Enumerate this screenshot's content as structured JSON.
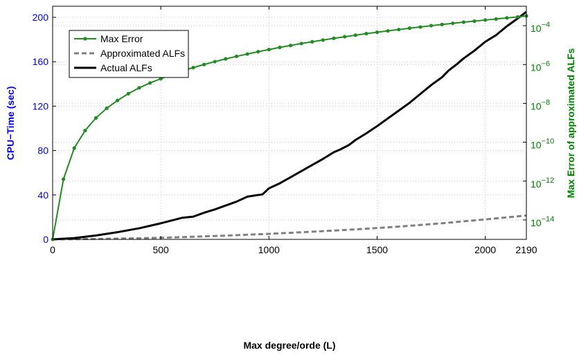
{
  "chart_data": {
    "type": "line",
    "title": "",
    "xlabel": "Max degree/orde (L)",
    "ylabel_left": "CPU−Time (sec)",
    "ylabel_right": "Max Error of approximated ALFs",
    "xlim": [
      0,
      2190
    ],
    "ylim_left": [
      0,
      210
    ],
    "ylim_right_log10": [
      -15,
      -3
    ],
    "right_axis_scale": "log",
    "x_ticks": [
      "0",
      "500",
      "1000",
      "1500",
      "2000",
      "2190"
    ],
    "x_tick_values": [
      0,
      500,
      1000,
      1500,
      2000,
      2190
    ],
    "y_left_ticks": [
      "0",
      "40",
      "80",
      "120",
      "160",
      "200"
    ],
    "y_left_tick_values": [
      0,
      40,
      80,
      120,
      160,
      200
    ],
    "y_right_tick_exponents": [
      "−14",
      "−12",
      "−10",
      "−8",
      "−6",
      "−4"
    ],
    "y_right_tick_values": [
      -14,
      -12,
      -10,
      -8,
      -6,
      -4
    ],
    "y_right_tick_base": "10",
    "grid": true,
    "legend_position": "top-left",
    "colors": {
      "left_axis": "#0000ff",
      "right_axis": "#008000",
      "max_error": "#228b22",
      "approximated": "#808080",
      "actual": "#000000"
    },
    "series": [
      {
        "name": "Max Error",
        "axis": "right",
        "style": "solid-marker",
        "x": [
          0,
          50,
          100,
          150,
          200,
          250,
          300,
          350,
          400,
          450,
          500,
          550,
          600,
          650,
          700,
          750,
          800,
          850,
          900,
          950,
          1000,
          1050,
          1100,
          1150,
          1200,
          1250,
          1300,
          1350,
          1400,
          1450,
          1500,
          1550,
          1600,
          1650,
          1700,
          1750,
          1800,
          1850,
          1900,
          1950,
          2000,
          2050,
          2100,
          2150,
          2190
        ],
        "y_log10": [
          -15.0,
          -11.9,
          -10.3,
          -9.4,
          -8.75,
          -8.25,
          -7.85,
          -7.5,
          -7.2,
          -6.95,
          -6.73,
          -6.52,
          -6.33,
          -6.16,
          -6.0,
          -5.85,
          -5.71,
          -5.58,
          -5.46,
          -5.34,
          -5.23,
          -5.12,
          -5.02,
          -4.92,
          -4.83,
          -4.74,
          -4.65,
          -4.57,
          -4.49,
          -4.41,
          -4.34,
          -4.27,
          -4.2,
          -4.13,
          -4.07,
          -4.0,
          -3.94,
          -3.88,
          -3.82,
          -3.77,
          -3.71,
          -3.66,
          -3.6,
          -3.55,
          -3.5
        ]
      },
      {
        "name": "Approximated ALFs",
        "axis": "left",
        "style": "dashed",
        "x": [
          0,
          200,
          400,
          600,
          800,
          1000,
          1200,
          1400,
          1600,
          1800,
          2000,
          2190
        ],
        "y": [
          0,
          0.4,
          1.0,
          2.0,
          3.4,
          5.0,
          6.9,
          9.0,
          11.5,
          14.5,
          18.0,
          21.5
        ]
      },
      {
        "name": "Actual ALFs",
        "axis": "left",
        "style": "solid",
        "x": [
          0,
          100,
          200,
          300,
          400,
          500,
          600,
          650,
          700,
          750,
          800,
          850,
          900,
          950,
          970,
          1000,
          1050,
          1100,
          1150,
          1200,
          1250,
          1300,
          1330,
          1370,
          1400,
          1450,
          1500,
          1550,
          1600,
          1650,
          1700,
          1750,
          1800,
          1830,
          1870,
          1900,
          1950,
          2000,
          2050,
          2100,
          2150,
          2190
        ],
        "y": [
          0,
          1.2,
          3.5,
          6.5,
          10,
          14.5,
          19.5,
          20.5,
          24,
          27,
          30.5,
          34,
          38.5,
          40,
          40.5,
          46,
          50.5,
          56,
          61.5,
          67,
          72.5,
          78.5,
          81,
          85,
          89.5,
          95.5,
          102,
          109,
          116,
          123,
          131,
          139,
          146,
          152,
          158,
          163,
          170,
          178,
          184,
          192,
          199,
          205
        ]
      }
    ]
  }
}
